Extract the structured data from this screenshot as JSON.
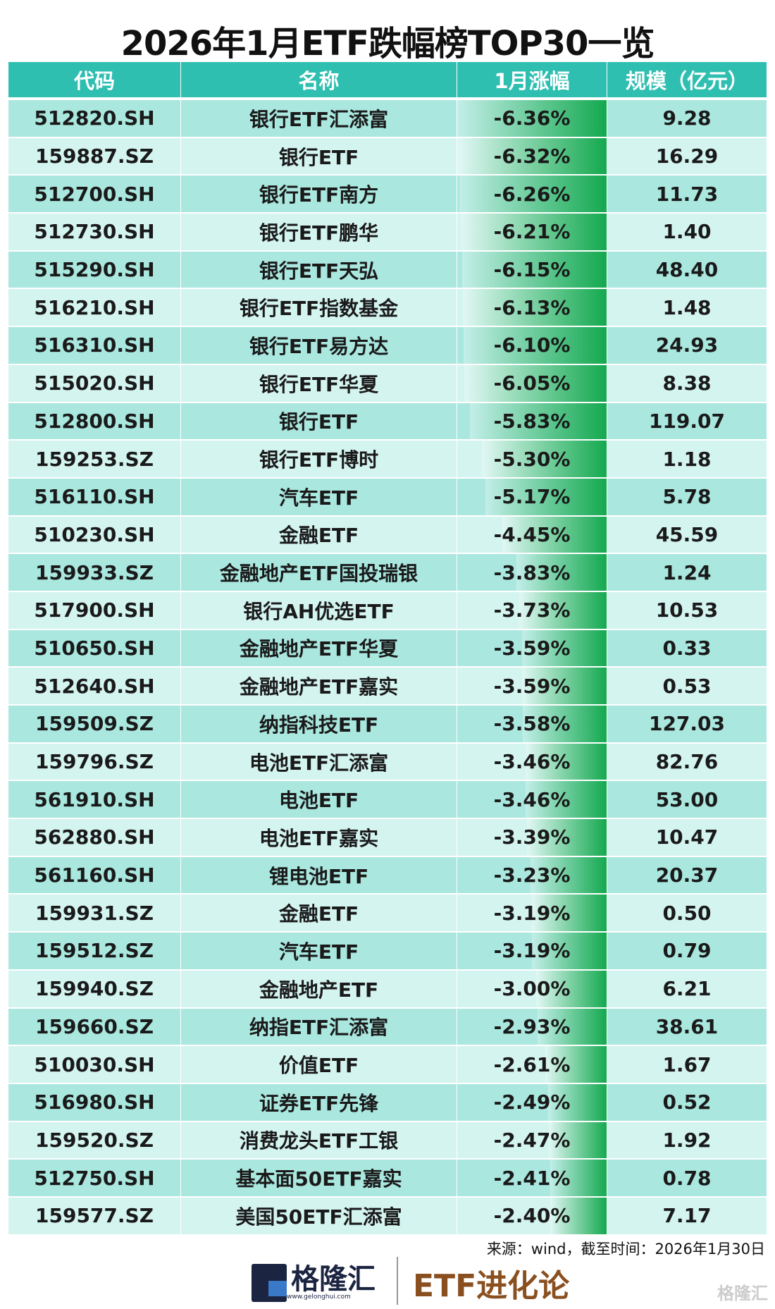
{
  "title": "2026年1月ETF跌幅榜TOP30一览",
  "headers": [
    "代码",
    "名称",
    "1月涨幅",
    "规模（亿元）"
  ],
  "bar_color": "#14a94f",
  "rows": [
    {
      "code": "512820.SH",
      "name": "银行ETF汇添富",
      "change": "-6.36%",
      "change_value": -6.36,
      "size": "9.28"
    },
    {
      "code": "159887.SZ",
      "name": "银行ETF",
      "change": "-6.32%",
      "change_value": -6.32,
      "size": "16.29"
    },
    {
      "code": "512700.SH",
      "name": "银行ETF南方",
      "change": "-6.26%",
      "change_value": -6.26,
      "size": "11.73"
    },
    {
      "code": "512730.SH",
      "name": "银行ETF鹏华",
      "change": "-6.21%",
      "change_value": -6.21,
      "size": "1.40"
    },
    {
      "code": "515290.SH",
      "name": "银行ETF天弘",
      "change": "-6.15%",
      "change_value": -6.15,
      "size": "48.40"
    },
    {
      "code": "516210.SH",
      "name": "银行ETF指数基金",
      "change": "-6.13%",
      "change_value": -6.13,
      "size": "1.48"
    },
    {
      "code": "516310.SH",
      "name": "银行ETF易方达",
      "change": "-6.10%",
      "change_value": -6.1,
      "size": "24.93"
    },
    {
      "code": "515020.SH",
      "name": "银行ETF华夏",
      "change": "-6.05%",
      "change_value": -6.05,
      "size": "8.38"
    },
    {
      "code": "512800.SH",
      "name": "银行ETF",
      "change": "-5.83%",
      "change_value": -5.83,
      "size": "119.07"
    },
    {
      "code": "159253.SZ",
      "name": "银行ETF博时",
      "change": "-5.30%",
      "change_value": -5.3,
      "size": "1.18"
    },
    {
      "code": "516110.SH",
      "name": "汽车ETF",
      "change": "-5.17%",
      "change_value": -5.17,
      "size": "5.78"
    },
    {
      "code": "510230.SH",
      "name": "金融ETF",
      "change": "-4.45%",
      "change_value": -4.45,
      "size": "45.59"
    },
    {
      "code": "159933.SZ",
      "name": "金融地产ETF国投瑞银",
      "change": "-3.83%",
      "change_value": -3.83,
      "size": "1.24"
    },
    {
      "code": "517900.SH",
      "name": "银行AH优选ETF",
      "change": "-3.73%",
      "change_value": -3.73,
      "size": "10.53"
    },
    {
      "code": "510650.SH",
      "name": "金融地产ETF华夏",
      "change": "-3.59%",
      "change_value": -3.59,
      "size": "0.33"
    },
    {
      "code": "512640.SH",
      "name": "金融地产ETF嘉实",
      "change": "-3.59%",
      "change_value": -3.59,
      "size": "0.53"
    },
    {
      "code": "159509.SZ",
      "name": "纳指科技ETF",
      "change": "-3.58%",
      "change_value": -3.58,
      "size": "127.03"
    },
    {
      "code": "159796.SZ",
      "name": "电池ETF汇添富",
      "change": "-3.46%",
      "change_value": -3.46,
      "size": "82.76"
    },
    {
      "code": "561910.SH",
      "name": "电池ETF",
      "change": "-3.46%",
      "change_value": -3.46,
      "size": "53.00"
    },
    {
      "code": "562880.SH",
      "name": "电池ETF嘉实",
      "change": "-3.39%",
      "change_value": -3.39,
      "size": "10.47"
    },
    {
      "code": "561160.SH",
      "name": "锂电池ETF",
      "change": "-3.23%",
      "change_value": -3.23,
      "size": "20.37"
    },
    {
      "code": "159931.SZ",
      "name": "金融ETF",
      "change": "-3.19%",
      "change_value": -3.19,
      "size": "0.50"
    },
    {
      "code": "159512.SZ",
      "name": "汽车ETF",
      "change": "-3.19%",
      "change_value": -3.19,
      "size": "0.79"
    },
    {
      "code": "159940.SZ",
      "name": "金融地产ETF",
      "change": "-3.00%",
      "change_value": -3.0,
      "size": "6.21"
    },
    {
      "code": "159660.SZ",
      "name": "纳指ETF汇添富",
      "change": "-2.93%",
      "change_value": -2.93,
      "size": "38.61"
    },
    {
      "code": "510030.SH",
      "name": "价值ETF",
      "change": "-2.61%",
      "change_value": -2.61,
      "size": "1.67"
    },
    {
      "code": "516980.SH",
      "name": "证券ETF先锋",
      "change": "-2.49%",
      "change_value": -2.49,
      "size": "0.52"
    },
    {
      "code": "159520.SZ",
      "name": "消费龙头ETF工银",
      "change": "-2.47%",
      "change_value": -2.47,
      "size": "1.92"
    },
    {
      "code": "512750.SH",
      "name": "基本面50ETF嘉实",
      "change": "-2.41%",
      "change_value": -2.41,
      "size": "0.78"
    },
    {
      "code": "159577.SZ",
      "name": "美国50ETF汇添富",
      "change": "-2.40%",
      "change_value": -2.4,
      "size": "7.17"
    }
  ],
  "source": "来源：wind，截至时间：2026年1月30日",
  "footer": {
    "logo_name": "格隆汇",
    "logo_url": "www.gelonghui.com",
    "column_name": "ETF进化论",
    "watermark": "格隆汇"
  }
}
